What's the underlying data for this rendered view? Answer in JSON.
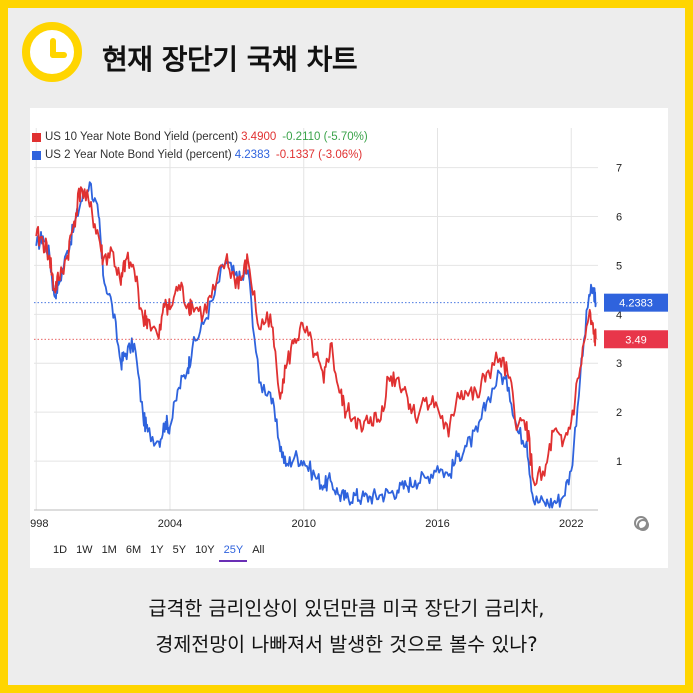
{
  "header": {
    "title": "현재 장단기 국채 차트",
    "icon": "clock-icon",
    "accent_color": "#ffd500"
  },
  "legend": {
    "series10": {
      "label": "US 10 Year Note Bond Yield (percent)",
      "value": "3.4900",
      "change": "-0.2110 (-5.70%)",
      "color": "#e03131"
    },
    "series2": {
      "label": "US 2 Year Note Bond Yield (percent)",
      "value": "4.2383",
      "change": "-0.1337 (-3.06%)",
      "color": "#2f63dd"
    }
  },
  "badges": {
    "blue": "4.2383",
    "red": "3.49"
  },
  "ranges": [
    "1D",
    "1W",
    "1M",
    "6M",
    "1Y",
    "5Y",
    "10Y",
    "25Y",
    "All"
  ],
  "active_range": "25Y",
  "caption": {
    "line1": "급격한 금리인상이 있던만큼 미국 장단기 금리차,",
    "line2": "경제전망이 나빠져서 발생한 것으로 볼수 있나?"
  },
  "chart_data": {
    "type": "line",
    "x_ticks": [
      "1998",
      "2004",
      "2010",
      "2016",
      "2022"
    ],
    "y_ticks": [
      "1",
      "2",
      "3",
      "4",
      "5",
      "6",
      "7"
    ],
    "xlim": [
      1997.9,
      2023.2
    ],
    "ylim": [
      0,
      7.4
    ],
    "grid": true,
    "series": [
      {
        "name": "US 10 Year Note Bond Yield (percent)",
        "color": "#e03131",
        "x": [
          1998,
          1998.3,
          1998.6,
          1998.8,
          1999.0,
          1999.4,
          1999.7,
          2000.0,
          2000.4,
          2000.8,
          2001.0,
          2001.4,
          2001.8,
          2002.0,
          2002.4,
          2002.8,
          2003.0,
          2003.5,
          2003.8,
          2004.0,
          2004.4,
          2004.8,
          2005.0,
          2005.5,
          2006.0,
          2006.5,
          2006.9,
          2007.2,
          2007.5,
          2008.0,
          2008.5,
          2008.9,
          2009.2,
          2009.6,
          2010.0,
          2010.5,
          2010.9,
          2011.2,
          2011.6,
          2011.9,
          2012.3,
          2012.6,
          2013.0,
          2013.4,
          2013.8,
          2014.2,
          2014.6,
          2015.0,
          2015.5,
          2016.0,
          2016.5,
          2016.9,
          2017.3,
          2017.8,
          2018.2,
          2018.8,
          2019.2,
          2019.6,
          2020.0,
          2020.3,
          2020.8,
          2021.2,
          2021.6,
          2022.0,
          2022.4,
          2022.8,
          2023.0,
          2023.1
        ],
        "y": [
          5.6,
          5.5,
          5.2,
          4.5,
          4.7,
          5.2,
          5.9,
          6.6,
          6.2,
          5.6,
          5.1,
          5.3,
          4.6,
          5.1,
          4.9,
          3.9,
          3.9,
          3.5,
          4.3,
          4.1,
          4.6,
          4.2,
          4.2,
          4.0,
          4.5,
          5.1,
          4.7,
          4.7,
          5.1,
          3.7,
          4.0,
          2.4,
          2.9,
          3.5,
          3.7,
          3.2,
          2.6,
          3.4,
          2.4,
          2.0,
          1.9,
          1.6,
          1.9,
          1.8,
          2.7,
          2.7,
          2.4,
          1.9,
          2.3,
          2.1,
          1.5,
          2.4,
          2.4,
          2.3,
          2.8,
          3.1,
          2.7,
          1.7,
          1.8,
          0.6,
          0.7,
          1.6,
          1.3,
          1.8,
          2.9,
          4.0,
          3.6,
          3.49
        ]
      },
      {
        "name": "US 2 Year Note Bond Yield (percent)",
        "color": "#2f63dd",
        "x": [
          1998,
          1998.3,
          1998.6,
          1998.8,
          1999.0,
          1999.4,
          1999.7,
          2000.0,
          2000.4,
          2000.8,
          2001.0,
          2001.4,
          2001.8,
          2002.0,
          2002.4,
          2002.8,
          2003.0,
          2003.5,
          2003.8,
          2004.0,
          2004.4,
          2004.8,
          2005.0,
          2005.5,
          2006.0,
          2006.5,
          2006.9,
          2007.2,
          2007.5,
          2008.0,
          2008.5,
          2008.9,
          2009.2,
          2009.6,
          2010.0,
          2010.5,
          2010.9,
          2011.2,
          2011.6,
          2011.9,
          2012.3,
          2012.6,
          2013.0,
          2013.4,
          2013.8,
          2014.2,
          2014.6,
          2015.0,
          2015.5,
          2016.0,
          2016.5,
          2016.9,
          2017.3,
          2017.8,
          2018.2,
          2018.8,
          2019.2,
          2019.6,
          2020.0,
          2020.3,
          2020.8,
          2021.2,
          2021.6,
          2022.0,
          2022.4,
          2022.8,
          2023.0,
          2023.1
        ],
        "y": [
          5.4,
          5.6,
          5.2,
          4.4,
          4.6,
          5.3,
          5.8,
          6.3,
          6.7,
          6.0,
          4.8,
          4.2,
          3.0,
          3.2,
          3.4,
          1.9,
          1.6,
          1.4,
          1.8,
          1.7,
          2.5,
          2.9,
          3.3,
          3.8,
          4.4,
          5.1,
          4.8,
          4.7,
          4.9,
          2.6,
          2.4,
          1.4,
          0.9,
          1.1,
          1.0,
          0.7,
          0.5,
          0.6,
          0.3,
          0.25,
          0.3,
          0.25,
          0.27,
          0.3,
          0.35,
          0.4,
          0.5,
          0.6,
          0.65,
          0.9,
          0.7,
          1.1,
          1.3,
          1.6,
          2.2,
          2.8,
          2.5,
          1.6,
          1.4,
          0.2,
          0.15,
          0.15,
          0.25,
          0.8,
          2.7,
          4.4,
          4.5,
          4.2383
        ]
      }
    ]
  }
}
